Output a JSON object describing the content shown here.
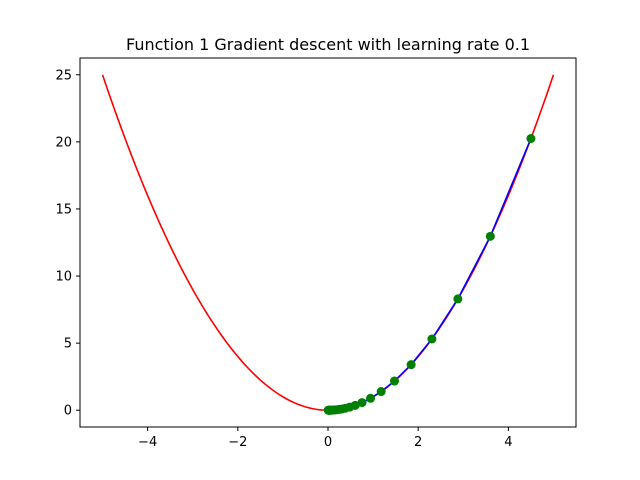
{
  "chart_data": {
    "type": "line",
    "title": "Function 1 Gradient descent with learning rate 0.1",
    "xlabel": "",
    "ylabel": "",
    "xlim": [
      -5.5,
      5.5
    ],
    "ylim": [
      -1.25,
      26.25
    ],
    "x_ticks": [
      -4,
      -2,
      0,
      2,
      4
    ],
    "y_ticks": [
      0,
      5,
      10,
      15,
      20,
      25
    ],
    "grid": false,
    "function": {
      "expression": "x^2",
      "x_range": [
        -5,
        5
      ],
      "color": "#ff0000"
    },
    "descent_path": {
      "color": "#0000ff",
      "marker_color": "#008000",
      "x": [
        4.5,
        3.6,
        2.88,
        2.304,
        1.8432,
        1.47456,
        1.179648,
        0.943718,
        0.754975,
        0.60398,
        0.483184,
        0.386547,
        0.309238,
        0.24739,
        0.197912,
        0.15833,
        0.126664,
        0.101331,
        0.081065,
        0.064852,
        0.051881,
        0.041505,
        0.033204,
        0.026563,
        0.02125,
        0.017,
        0.0136,
        0.01088,
        0.008704,
        0.006963
      ],
      "y": [
        20.25,
        12.96,
        8.2944,
        5.3084,
        3.3974,
        2.1743,
        1.3916,
        0.8906,
        0.57,
        0.3648,
        0.2335,
        0.1494,
        0.0956,
        0.0612,
        0.0392,
        0.0251,
        0.016,
        0.0103,
        0.0066,
        0.0042,
        0.0027,
        0.0017,
        0.0011,
        0.0007,
        0.0005,
        0.0003,
        0.0002,
        0.0001,
        0.0001,
        0.0
      ]
    }
  }
}
